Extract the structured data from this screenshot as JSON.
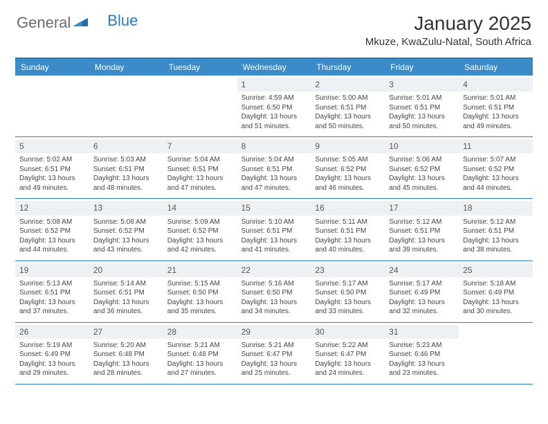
{
  "logo": {
    "text1": "General",
    "text2": "Blue"
  },
  "title": "January 2025",
  "location": "Mkuze, KwaZulu-Natal, South Africa",
  "colors": {
    "header_bg": "#3b8bc9",
    "border": "#2a7ab9",
    "daynum_bg": "#eef1f3",
    "text": "#444444"
  },
  "day_names": [
    "Sunday",
    "Monday",
    "Tuesday",
    "Wednesday",
    "Thursday",
    "Friday",
    "Saturday"
  ],
  "weeks": [
    [
      {
        "empty": true
      },
      {
        "empty": true
      },
      {
        "empty": true
      },
      {
        "n": "1",
        "sr": "Sunrise: 4:59 AM",
        "ss": "Sunset: 6:50 PM",
        "d1": "Daylight: 13 hours",
        "d2": "and 51 minutes."
      },
      {
        "n": "2",
        "sr": "Sunrise: 5:00 AM",
        "ss": "Sunset: 6:51 PM",
        "d1": "Daylight: 13 hours",
        "d2": "and 50 minutes."
      },
      {
        "n": "3",
        "sr": "Sunrise: 5:01 AM",
        "ss": "Sunset: 6:51 PM",
        "d1": "Daylight: 13 hours",
        "d2": "and 50 minutes."
      },
      {
        "n": "4",
        "sr": "Sunrise: 5:01 AM",
        "ss": "Sunset: 6:51 PM",
        "d1": "Daylight: 13 hours",
        "d2": "and 49 minutes."
      }
    ],
    [
      {
        "n": "5",
        "sr": "Sunrise: 5:02 AM",
        "ss": "Sunset: 6:51 PM",
        "d1": "Daylight: 13 hours",
        "d2": "and 49 minutes."
      },
      {
        "n": "6",
        "sr": "Sunrise: 5:03 AM",
        "ss": "Sunset: 6:51 PM",
        "d1": "Daylight: 13 hours",
        "d2": "and 48 minutes."
      },
      {
        "n": "7",
        "sr": "Sunrise: 5:04 AM",
        "ss": "Sunset: 6:51 PM",
        "d1": "Daylight: 13 hours",
        "d2": "and 47 minutes."
      },
      {
        "n": "8",
        "sr": "Sunrise: 5:04 AM",
        "ss": "Sunset: 6:51 PM",
        "d1": "Daylight: 13 hours",
        "d2": "and 47 minutes."
      },
      {
        "n": "9",
        "sr": "Sunrise: 5:05 AM",
        "ss": "Sunset: 6:52 PM",
        "d1": "Daylight: 13 hours",
        "d2": "and 46 minutes."
      },
      {
        "n": "10",
        "sr": "Sunrise: 5:06 AM",
        "ss": "Sunset: 6:52 PM",
        "d1": "Daylight: 13 hours",
        "d2": "and 45 minutes."
      },
      {
        "n": "11",
        "sr": "Sunrise: 5:07 AM",
        "ss": "Sunset: 6:52 PM",
        "d1": "Daylight: 13 hours",
        "d2": "and 44 minutes."
      }
    ],
    [
      {
        "n": "12",
        "sr": "Sunrise: 5:08 AM",
        "ss": "Sunset: 6:52 PM",
        "d1": "Daylight: 13 hours",
        "d2": "and 44 minutes."
      },
      {
        "n": "13",
        "sr": "Sunrise: 5:08 AM",
        "ss": "Sunset: 6:52 PM",
        "d1": "Daylight: 13 hours",
        "d2": "and 43 minutes."
      },
      {
        "n": "14",
        "sr": "Sunrise: 5:09 AM",
        "ss": "Sunset: 6:52 PM",
        "d1": "Daylight: 13 hours",
        "d2": "and 42 minutes."
      },
      {
        "n": "15",
        "sr": "Sunrise: 5:10 AM",
        "ss": "Sunset: 6:51 PM",
        "d1": "Daylight: 13 hours",
        "d2": "and 41 minutes."
      },
      {
        "n": "16",
        "sr": "Sunrise: 5:11 AM",
        "ss": "Sunset: 6:51 PM",
        "d1": "Daylight: 13 hours",
        "d2": "and 40 minutes."
      },
      {
        "n": "17",
        "sr": "Sunrise: 5:12 AM",
        "ss": "Sunset: 6:51 PM",
        "d1": "Daylight: 13 hours",
        "d2": "and 39 minutes."
      },
      {
        "n": "18",
        "sr": "Sunrise: 5:12 AM",
        "ss": "Sunset: 6:51 PM",
        "d1": "Daylight: 13 hours",
        "d2": "and 38 minutes."
      }
    ],
    [
      {
        "n": "19",
        "sr": "Sunrise: 5:13 AM",
        "ss": "Sunset: 6:51 PM",
        "d1": "Daylight: 13 hours",
        "d2": "and 37 minutes."
      },
      {
        "n": "20",
        "sr": "Sunrise: 5:14 AM",
        "ss": "Sunset: 6:51 PM",
        "d1": "Daylight: 13 hours",
        "d2": "and 36 minutes."
      },
      {
        "n": "21",
        "sr": "Sunrise: 5:15 AM",
        "ss": "Sunset: 6:50 PM",
        "d1": "Daylight: 13 hours",
        "d2": "and 35 minutes."
      },
      {
        "n": "22",
        "sr": "Sunrise: 5:16 AM",
        "ss": "Sunset: 6:50 PM",
        "d1": "Daylight: 13 hours",
        "d2": "and 34 minutes."
      },
      {
        "n": "23",
        "sr": "Sunrise: 5:17 AM",
        "ss": "Sunset: 6:50 PM",
        "d1": "Daylight: 13 hours",
        "d2": "and 33 minutes."
      },
      {
        "n": "24",
        "sr": "Sunrise: 5:17 AM",
        "ss": "Sunset: 6:49 PM",
        "d1": "Daylight: 13 hours",
        "d2": "and 32 minutes."
      },
      {
        "n": "25",
        "sr": "Sunrise: 5:18 AM",
        "ss": "Sunset: 6:49 PM",
        "d1": "Daylight: 13 hours",
        "d2": "and 30 minutes."
      }
    ],
    [
      {
        "n": "26",
        "sr": "Sunrise: 5:19 AM",
        "ss": "Sunset: 6:49 PM",
        "d1": "Daylight: 13 hours",
        "d2": "and 29 minutes."
      },
      {
        "n": "27",
        "sr": "Sunrise: 5:20 AM",
        "ss": "Sunset: 6:48 PM",
        "d1": "Daylight: 13 hours",
        "d2": "and 28 minutes."
      },
      {
        "n": "28",
        "sr": "Sunrise: 5:21 AM",
        "ss": "Sunset: 6:48 PM",
        "d1": "Daylight: 13 hours",
        "d2": "and 27 minutes."
      },
      {
        "n": "29",
        "sr": "Sunrise: 5:21 AM",
        "ss": "Sunset: 6:47 PM",
        "d1": "Daylight: 13 hours",
        "d2": "and 25 minutes."
      },
      {
        "n": "30",
        "sr": "Sunrise: 5:22 AM",
        "ss": "Sunset: 6:47 PM",
        "d1": "Daylight: 13 hours",
        "d2": "and 24 minutes."
      },
      {
        "n": "31",
        "sr": "Sunrise: 5:23 AM",
        "ss": "Sunset: 6:46 PM",
        "d1": "Daylight: 13 hours",
        "d2": "and 23 minutes."
      },
      {
        "empty": true
      }
    ]
  ]
}
